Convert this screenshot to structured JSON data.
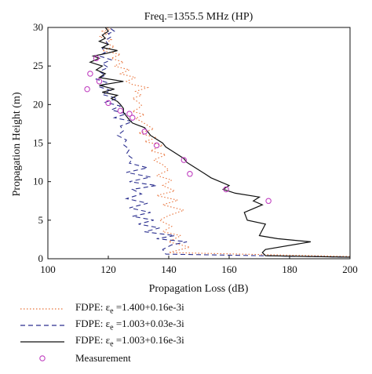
{
  "chart_data": {
    "type": "line",
    "title": "Freq.=1355.5 MHz (HP)",
    "xlabel": "Propagation Loss (dB)",
    "ylabel": "Propagation Height (m)",
    "xlim": [
      100,
      200
    ],
    "ylim": [
      0,
      30
    ],
    "xticks": [
      "100",
      "120",
      "140",
      "160",
      "180",
      "200"
    ],
    "yticks": [
      "0",
      "5",
      "10",
      "15",
      "20",
      "25",
      "30"
    ],
    "grid": false,
    "legend_position": "below",
    "series": [
      {
        "name": "FDPE: ε_e =1.400+0.16e-3i",
        "label_parts": [
          "FDPE: ε",
          "e",
          " =1.400+0.16e-3i"
        ],
        "style": "dotted",
        "color": "#e8733a",
        "x": [
          207,
          140,
          147,
          140,
          144,
          138,
          141,
          137,
          140,
          145,
          138,
          143,
          136,
          142,
          138,
          141,
          136,
          140,
          138,
          135,
          139,
          134,
          138,
          132,
          136,
          130,
          135,
          133,
          131,
          129,
          132,
          128,
          130,
          131,
          130,
          128,
          131,
          129,
          133,
          128,
          126,
          129,
          124,
          127,
          122,
          125,
          121,
          124,
          118,
          122,
          119,
          121,
          117,
          120,
          118,
          121,
          119,
          122,
          120
        ],
        "y": [
          0.3,
          0.8,
          1.5,
          2.2,
          3.0,
          3.5,
          4.2,
          5.0,
          5.6,
          6.3,
          7.0,
          7.6,
          8.2,
          8.8,
          9.5,
          10.2,
          10.8,
          11.5,
          12.2,
          12.8,
          13.5,
          14.0,
          14.7,
          15.2,
          15.7,
          16.3,
          16.8,
          17.3,
          17.8,
          18.2,
          18.7,
          19.1,
          19.5,
          19.9,
          20.3,
          20.8,
          21.2,
          21.7,
          22.2,
          22.6,
          23.0,
          23.5,
          24.0,
          24.5,
          25.0,
          25.5,
          26.0,
          26.5,
          27.0,
          27.5,
          28.0,
          28.4,
          28.8,
          29.2,
          29.5,
          29.8,
          30.0,
          30.0,
          30.0
        ]
      },
      {
        "name": "FDPE: ε_e =1.003+0.03e-3i",
        "label_parts": [
          "FDPE: ε",
          "e",
          " =1.003+0.03e-3i"
        ],
        "style": "dashed",
        "color": "#2b2f8f",
        "x": [
          207,
          139,
          138,
          141,
          146,
          136,
          142,
          132,
          137,
          130,
          135,
          128,
          134,
          127,
          133,
          126,
          131,
          128,
          136,
          127,
          134,
          126,
          133,
          127,
          128,
          126,
          127,
          125,
          126,
          123,
          125,
          124,
          128,
          122,
          126,
          121,
          124,
          119,
          123,
          118,
          121,
          117,
          120,
          116,
          119,
          117,
          120,
          118,
          121,
          117,
          119,
          118,
          120,
          119,
          121,
          120,
          122,
          121,
          120
        ],
        "y": [
          0.2,
          0.6,
          1.2,
          1.8,
          2.2,
          2.6,
          3.0,
          3.5,
          4.0,
          4.5,
          5.0,
          5.5,
          6.0,
          6.6,
          7.2,
          7.8,
          8.4,
          9.0,
          9.5,
          10.0,
          10.6,
          11.2,
          11.8,
          12.4,
          13.0,
          13.6,
          14.2,
          14.8,
          15.4,
          16.0,
          16.6,
          17.2,
          17.8,
          18.3,
          18.8,
          19.3,
          19.8,
          20.3,
          20.8,
          21.3,
          21.8,
          22.3,
          22.8,
          23.3,
          23.8,
          24.3,
          24.8,
          25.3,
          25.8,
          26.3,
          26.8,
          27.3,
          27.8,
          28.3,
          28.8,
          29.2,
          29.5,
          29.8,
          30.0
        ]
      },
      {
        "name": "FDPE: ε_e =1.003+0.16e-3i",
        "label_parts": [
          "FDPE: ε",
          "e",
          " =1.003+0.16e-3i"
        ],
        "style": "solid",
        "color": "#111111",
        "x": [
          207,
          172,
          171,
          172,
          187,
          176,
          170,
          172,
          166,
          165,
          171,
          168,
          170,
          162,
          158,
          160,
          157,
          154,
          152,
          150,
          148,
          146,
          145,
          143,
          141,
          139,
          138,
          136,
          134,
          133,
          132,
          130,
          128,
          127,
          126,
          125,
          125,
          124,
          123,
          121,
          123,
          118,
          122,
          117,
          125,
          117,
          119,
          116,
          118,
          114,
          117,
          115,
          119,
          123,
          118,
          120,
          117,
          119,
          118,
          120,
          119
        ],
        "y": [
          0.2,
          0.4,
          0.8,
          1.2,
          2.2,
          2.6,
          3.0,
          4.5,
          5.0,
          6.0,
          7.0,
          7.5,
          8.0,
          8.5,
          9.0,
          9.5,
          10.0,
          10.5,
          11.0,
          11.5,
          12.0,
          12.5,
          13.0,
          13.5,
          14.0,
          14.5,
          15.0,
          15.5,
          16.0,
          16.5,
          17.0,
          17.3,
          17.6,
          18.0,
          18.5,
          19.0,
          19.5,
          20.0,
          20.4,
          20.8,
          21.2,
          21.6,
          22.0,
          22.5,
          23.0,
          23.5,
          24.0,
          24.5,
          25.0,
          25.5,
          26.0,
          26.3,
          26.6,
          27.0,
          27.4,
          27.8,
          28.2,
          28.6,
          29.0,
          29.5,
          30.0
        ]
      },
      {
        "name": "Measurement",
        "label_parts": [
          "Measurement",
          "",
          ""
        ],
        "style": "marker",
        "marker": "circle",
        "color": "#c040c0",
        "x": [
          116,
          114,
          117,
          113,
          120,
          124,
          127,
          128,
          132,
          136,
          145,
          147,
          159,
          173
        ],
        "y": [
          26.0,
          24.0,
          23.0,
          22.0,
          20.2,
          19.2,
          18.8,
          18.3,
          16.5,
          14.7,
          12.8,
          11.0,
          9.0,
          7.5
        ]
      }
    ]
  }
}
